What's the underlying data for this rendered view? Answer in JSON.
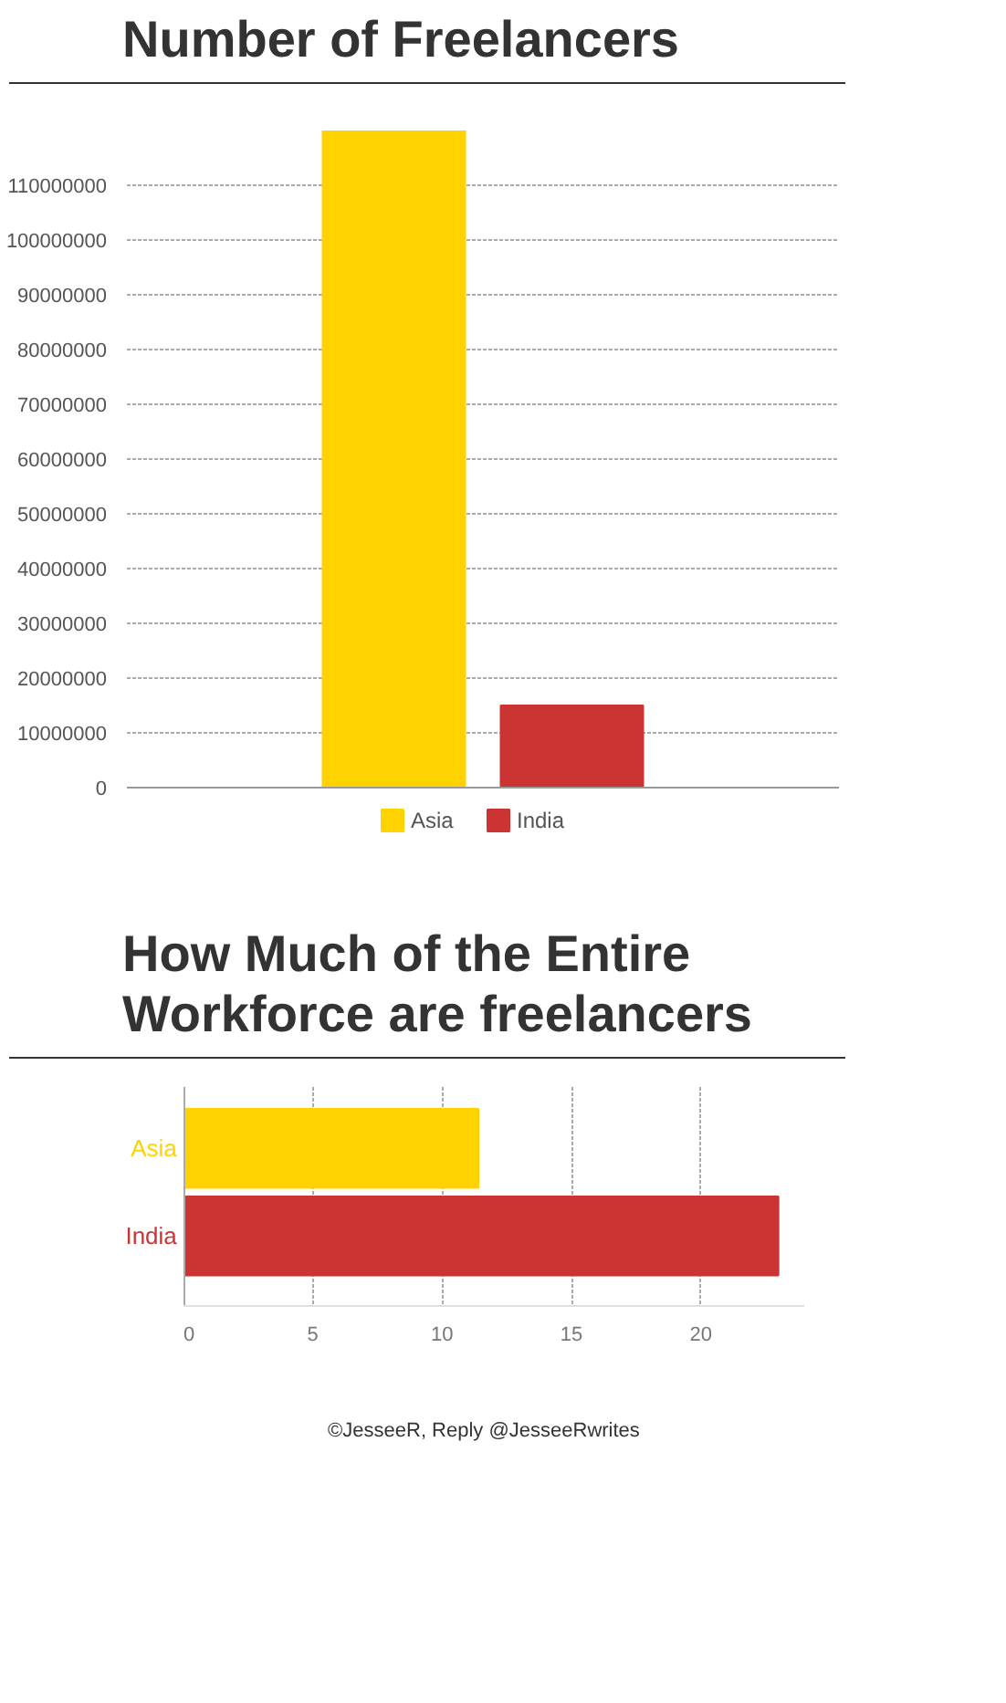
{
  "chart_data": [
    {
      "type": "bar",
      "title": "Number of Freelancers",
      "categories": [
        null
      ],
      "series": [
        {
          "name": "Asia",
          "color": "#ffd200",
          "values": [
            120000000
          ]
        },
        {
          "name": "India",
          "color": "#cc3333",
          "values": [
            15000000
          ]
        }
      ],
      "ylim": [
        0,
        120000000
      ],
      "yticks": [
        0,
        10000000,
        20000000,
        30000000,
        40000000,
        50000000,
        60000000,
        70000000,
        80000000,
        90000000,
        100000000,
        110000000
      ],
      "grid": "y",
      "legend": "bottom"
    },
    {
      "type": "bar",
      "orientation": "horizontal",
      "title": "How Much of the Entire Workforce are freelancers",
      "categories": [
        "Asia",
        "India"
      ],
      "values": [
        11.4,
        23.0
      ],
      "colors": [
        "#ffd200",
        "#cc3333"
      ],
      "xlim": [
        0,
        24
      ],
      "xticks": [
        0,
        5,
        10,
        15,
        20
      ],
      "grid": "x",
      "annotations": [
        "©JesseeR, Reply @JesseeRwrites"
      ]
    }
  ]
}
